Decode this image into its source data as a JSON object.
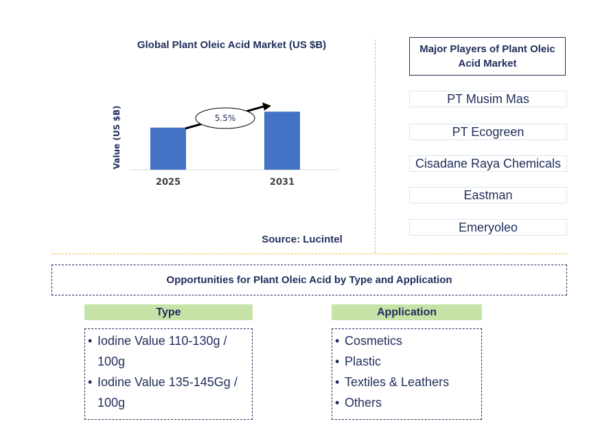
{
  "chart_data": {
    "type": "bar",
    "title": "Global Plant Oleic Acid Market (US $B)",
    "ylabel": "Value (US $B)",
    "categories": [
      "2025",
      "2031"
    ],
    "values": [
      1.0,
      1.38
    ],
    "ylim": [
      0,
      1.6
    ],
    "annotation": "5.5%",
    "colors": {
      "bar": "#4472c4",
      "axis": "#d9d9d9"
    },
    "source": "Source: Lucintel"
  },
  "players": {
    "title": "Major Players of Plant Oleic Acid Market",
    "items": [
      "PT Musim Mas",
      "PT Ecogreen",
      "Cisadane Raya Chemicals",
      "Eastman",
      "Emeryoleo"
    ]
  },
  "opportunities": {
    "title": "Opportunities for Plant Oleic Acid by Type and Application",
    "type": {
      "heading": "Type",
      "items": [
        "Iodine Value 110-130g / 100g",
        "Iodine Value 135-145Gg / 100g"
      ]
    },
    "application": {
      "heading": "Application",
      "items": [
        "Cosmetics",
        "Plastic",
        "Textiles & Leathers",
        "Others"
      ]
    }
  }
}
